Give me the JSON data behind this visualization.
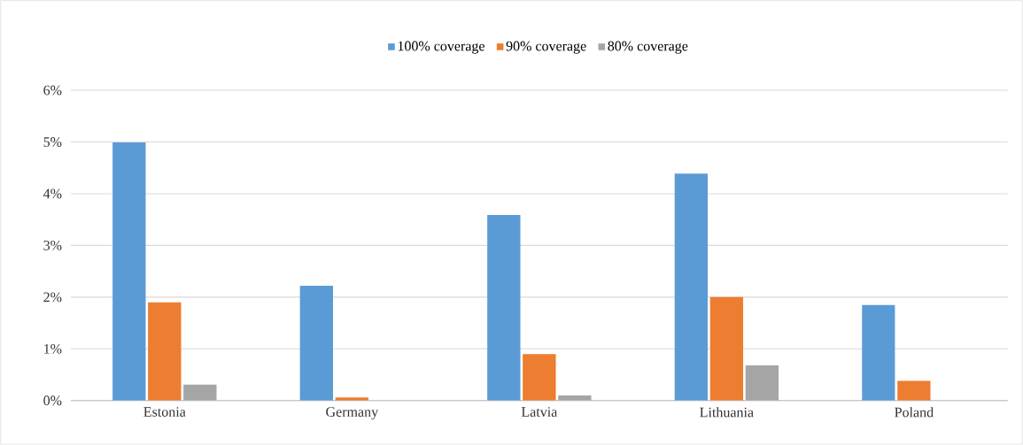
{
  "chart_data": {
    "type": "bar",
    "categories": [
      "Estonia",
      "Germany",
      "Latvia",
      "Lithuania",
      "Poland"
    ],
    "series": [
      {
        "name": "100% coverage",
        "color": "#5b9bd5",
        "values": [
          4.99,
          2.22,
          3.59,
          4.39,
          1.85
        ]
      },
      {
        "name": "90% coverage",
        "color": "#ed7d31",
        "values": [
          1.9,
          0.06,
          0.9,
          2.0,
          0.38
        ]
      },
      {
        "name": "80% coverage",
        "color": "#a5a5a5",
        "values": [
          0.31,
          0,
          0.1,
          0.68,
          0
        ]
      }
    ],
    "ylim": [
      0,
      6
    ],
    "yticks": [
      {
        "value": 0,
        "label": "0%"
      },
      {
        "value": 1,
        "label": "1%"
      },
      {
        "value": 2,
        "label": "2%"
      },
      {
        "value": 3,
        "label": "3%"
      },
      {
        "value": 4,
        "label": "4%"
      },
      {
        "value": 5,
        "label": "5%"
      },
      {
        "value": 6,
        "label": "6%"
      }
    ],
    "grid": "y",
    "legend": "top"
  }
}
